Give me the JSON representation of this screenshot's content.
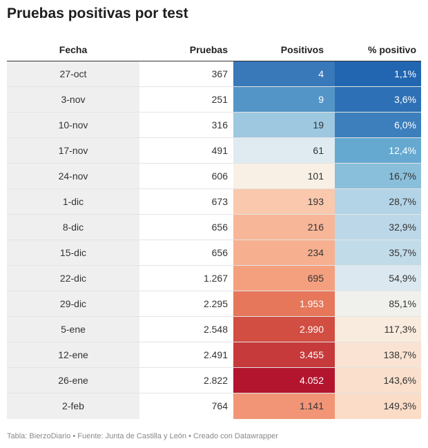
{
  "title": "Pruebas positivas por test",
  "footer": "Tabla: BierzoDiario • Fuente: Junta de Castilla y León • Creado con Datawrapper",
  "chart_data": {
    "type": "table",
    "title": "Pruebas positivas por test",
    "columns": [
      "Fecha",
      "Pruebas",
      "Positivos",
      "% positivo"
    ],
    "rows": [
      {
        "fecha": "27-oct",
        "pruebas": "367",
        "positivos": "4",
        "pct": "1,1%",
        "pos_color": "#3978b9",
        "pct_color": "#2266b1",
        "pos_text": "#ffffff",
        "pct_text": "#ffffff"
      },
      {
        "fecha": "3-nov",
        "pruebas": "251",
        "positivos": "9",
        "pct": "3,6%",
        "pos_color": "#5495c8",
        "pct_color": "#2e70b5",
        "pos_text": "#ffffff",
        "pct_text": "#ffffff"
      },
      {
        "fecha": "10-nov",
        "pruebas": "316",
        "positivos": "19",
        "pct": "6,0%",
        "pos_color": "#9ec7e0",
        "pct_color": "#3d7fbd",
        "pos_text": "#333333",
        "pct_text": "#ffffff"
      },
      {
        "fecha": "17-nov",
        "pruebas": "491",
        "positivos": "61",
        "pct": "12,4%",
        "pos_color": "#dfebf0",
        "pct_color": "#65a9d0",
        "pos_text": "#333333",
        "pct_text": "#ffffff"
      },
      {
        "fecha": "24-nov",
        "pruebas": "606",
        "positivos": "101",
        "pct": "16,7%",
        "pos_color": "#f8f0e4",
        "pct_color": "#8abfdb",
        "pos_text": "#333333",
        "pct_text": "#333333"
      },
      {
        "fecha": "1-dic",
        "pruebas": "673",
        "positivos": "193",
        "pct": "28,7%",
        "pos_color": "#f9c8ad",
        "pct_color": "#b3d4e6",
        "pos_text": "#333333",
        "pct_text": "#333333"
      },
      {
        "fecha": "8-dic",
        "pruebas": "656",
        "positivos": "216",
        "pct": "32,9%",
        "pos_color": "#f8b698",
        "pct_color": "#bcd8e8",
        "pos_text": "#333333",
        "pct_text": "#333333"
      },
      {
        "fecha": "15-dic",
        "pruebas": "656",
        "positivos": "234",
        "pct": "35,7%",
        "pos_color": "#f6b090",
        "pct_color": "#c2dbe9",
        "pos_text": "#333333",
        "pct_text": "#333333"
      },
      {
        "fecha": "22-dic",
        "pruebas": "1.267",
        "positivos": "695",
        "pct": "54,9%",
        "pos_color": "#f4a07f",
        "pct_color": "#dbe8ef",
        "pos_text": "#333333",
        "pct_text": "#333333"
      },
      {
        "fecha": "29-dic",
        "pruebas": "2.295",
        "positivos": "1.953",
        "pct": "85,1%",
        "pos_color": "#e6775a",
        "pct_color": "#f0f1ec",
        "pos_text": "#ffffff",
        "pct_text": "#333333"
      },
      {
        "fecha": "5-ene",
        "pruebas": "2.548",
        "positivos": "2.990",
        "pct": "117,3%",
        "pos_color": "#d24e42",
        "pct_color": "#f9ebdd",
        "pos_text": "#ffffff",
        "pct_text": "#333333"
      },
      {
        "fecha": "12-ene",
        "pruebas": "2.491",
        "positivos": "3.455",
        "pct": "138,7%",
        "pos_color": "#c63a3b",
        "pct_color": "#fae3d2",
        "pos_text": "#ffffff",
        "pct_text": "#333333"
      },
      {
        "fecha": "26-ene",
        "pruebas": "2.822",
        "positivos": "4.052",
        "pct": "143,6%",
        "pos_color": "#b3152f",
        "pct_color": "#fadfcc",
        "pos_text": "#ffffff",
        "pct_text": "#333333"
      },
      {
        "fecha": "2-feb",
        "pruebas": "764",
        "positivos": "1.141",
        "pct": "149,3%",
        "pos_color": "#f29577",
        "pct_color": "#fbdcc7",
        "pos_text": "#333333",
        "pct_text": "#333333"
      }
    ]
  }
}
